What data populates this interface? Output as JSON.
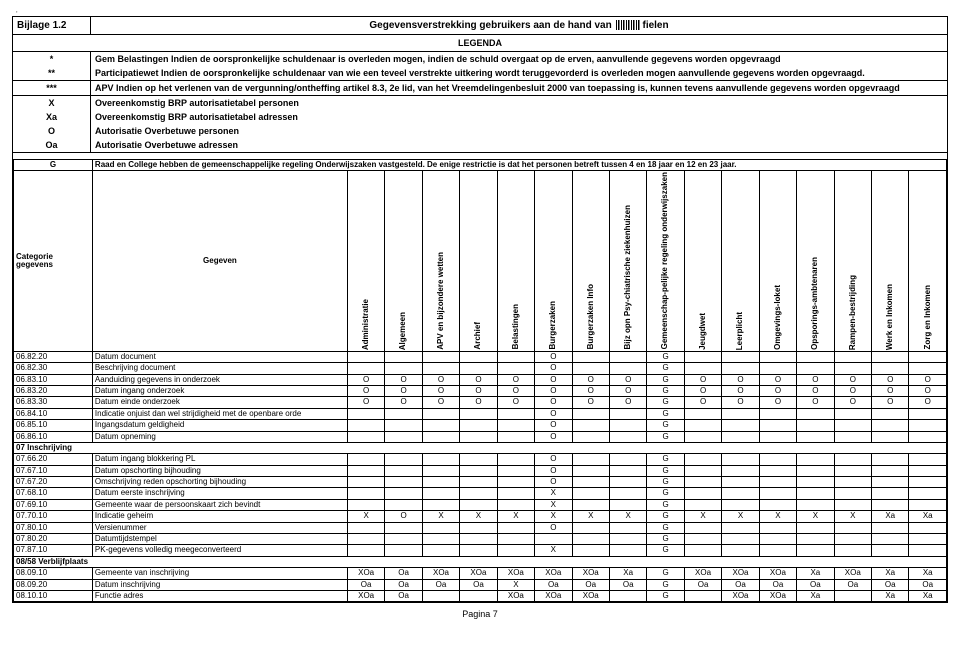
{
  "topbar": ",",
  "bijlage": "Bijlage 1.2",
  "titleLeft": "Gegevensverstrekking gebruikers aan de hand van ",
  "titleRight": "fielen",
  "legenda": "LEGENDA",
  "legendRows": [
    {
      "code": "*",
      "text": "Gem Belastingen Indien de oorspronkelijke schuldenaar is overleden mogen, indien de schuld overgaat op de erven, aanvullende gegevens worden opgevraagd"
    },
    {
      "code": "**",
      "text": "Participatiewet Indien de oorspronkelijke schuldenaar van wie een teveel verstrekte uitkering wordt teruggevorderd is overleden mogen aanvullende gegevens worden opgevraagd."
    }
  ],
  "legendRows2": [
    {
      "code": "***",
      "text": "APV Indien op het verlenen van de vergunning/ontheffing artikel 8.3, 2e lid, van het Vreemdelingenbesluit 2000 van toepassing is, kunnen tevens aanvullende gegevens worden opgevraagd"
    }
  ],
  "legendRows3": [
    {
      "code": "X",
      "text": "Overeenkomstig BRP autorisatietabel personen"
    },
    {
      "code": "Xa",
      "text": "Overeenkomstig BRP autorisatietabel adressen"
    },
    {
      "code": "O",
      "text": "Autorisatie Overbetuwe personen"
    },
    {
      "code": "Oa",
      "text": "Autorisatie Overbetuwe adressen"
    }
  ],
  "gnote": {
    "code": "G",
    "text": "Raad en College hebben de gemeenschappelijke regeling Onderwijszaken vastgesteld. De enige restrictie is dat het personen betreft tussen 4 en 18 jaar en 12 en 23 jaar."
  },
  "catlabel": "Categorie gegevens",
  "gegeven": "Gegeven",
  "columns": [
    "Administratie",
    "Algemeen",
    "APV en bijzondere wetten",
    "Archief",
    "Belastingen",
    "Burgerzaken",
    "Burgerzaken Info",
    "Bijz opn Psy-chiatrische ziekenhuizen",
    "Gemeenschap-pelijke regeling onderwijszaken",
    "Jeugdwet",
    "Leerplicht",
    "Omgevings-loket",
    "Opsporings-ambtenaren",
    "Rampen-bestrijding",
    "Werk en Inkomen",
    "Zorg en Inkomen"
  ],
  "rows": [
    {
      "code": "06.82.20",
      "desc": "Datum document",
      "c": [
        "",
        "",
        "",
        "",
        "",
        "O",
        "",
        "",
        "G",
        "",
        "",
        "",
        "",
        "",
        "",
        ""
      ]
    },
    {
      "code": "06.82.30",
      "desc": "Beschrijving document",
      "c": [
        "",
        "",
        "",
        "",
        "",
        "O",
        "",
        "",
        "G",
        "",
        "",
        "",
        "",
        "",
        "",
        ""
      ]
    },
    {
      "code": "06.83.10",
      "desc": "Aanduiding gegevens in onderzoek",
      "c": [
        "O",
        "O",
        "O",
        "O",
        "O",
        "O",
        "O",
        "O",
        "G",
        "O",
        "O",
        "O",
        "O",
        "O",
        "O",
        "O"
      ]
    },
    {
      "code": "06.83.20",
      "desc": "Datum ingang onderzoek",
      "c": [
        "O",
        "O",
        "O",
        "O",
        "O",
        "O",
        "O",
        "O",
        "G",
        "O",
        "O",
        "O",
        "O",
        "O",
        "O",
        "O"
      ]
    },
    {
      "code": "06.83.30",
      "desc": "Datum einde onderzoek",
      "c": [
        "O",
        "O",
        "O",
        "O",
        "O",
        "O",
        "O",
        "O",
        "G",
        "O",
        "O",
        "O",
        "O",
        "O",
        "O",
        "O"
      ]
    },
    {
      "code": "06.84.10",
      "desc": "Indicatie onjuist dan wel strijdigheid met de openbare orde",
      "c": [
        "",
        "",
        "",
        "",
        "",
        "O",
        "",
        "",
        "G",
        "",
        "",
        "",
        "",
        "",
        "",
        ""
      ]
    },
    {
      "code": "06.85.10",
      "desc": "Ingangsdatum geldigheid",
      "c": [
        "",
        "",
        "",
        "",
        "",
        "O",
        "",
        "",
        "G",
        "",
        "",
        "",
        "",
        "",
        "",
        ""
      ]
    },
    {
      "code": "06.86.10",
      "desc": "Datum opneming",
      "c": [
        "",
        "",
        "",
        "",
        "",
        "O",
        "",
        "",
        "G",
        "",
        "",
        "",
        "",
        "",
        "",
        ""
      ]
    },
    {
      "section": "07 Inschrijving"
    },
    {
      "code": "07.66.20",
      "desc": "Datum ingang blokkering PL",
      "c": [
        "",
        "",
        "",
        "",
        "",
        "O",
        "",
        "",
        "G",
        "",
        "",
        "",
        "",
        "",
        "",
        ""
      ]
    },
    {
      "code": "07.67.10",
      "desc": "Datum opschorting bijhouding",
      "c": [
        "",
        "",
        "",
        "",
        "",
        "O",
        "",
        "",
        "G",
        "",
        "",
        "",
        "",
        "",
        "",
        ""
      ]
    },
    {
      "code": "07.67.20",
      "desc": "Omschrijving reden opschorting bijhouding",
      "c": [
        "",
        "",
        "",
        "",
        "",
        "O",
        "",
        "",
        "G",
        "",
        "",
        "",
        "",
        "",
        "",
        ""
      ]
    },
    {
      "code": "07.68.10",
      "desc": "Datum eerste inschrijving",
      "c": [
        "",
        "",
        "",
        "",
        "",
        "X",
        "",
        "",
        "G",
        "",
        "",
        "",
        "",
        "",
        "",
        ""
      ]
    },
    {
      "code": "07.69.10",
      "desc": "Gemeente waar de persoonskaart zich bevindt",
      "c": [
        "",
        "",
        "",
        "",
        "",
        "X",
        "",
        "",
        "G",
        "",
        "",
        "",
        "",
        "",
        "",
        ""
      ]
    },
    {
      "code": "07.70.10",
      "desc": "Indicatie geheim",
      "c": [
        "X",
        "O",
        "X",
        "X",
        "X",
        "X",
        "X",
        "X",
        "G",
        "X",
        "X",
        "X",
        "X",
        "X",
        "Xa",
        "Xa"
      ]
    },
    {
      "code": "07.80.10",
      "desc": "Versienummer",
      "c": [
        "",
        "",
        "",
        "",
        "",
        "O",
        "",
        "",
        "G",
        "",
        "",
        "",
        "",
        "",
        "",
        ""
      ]
    },
    {
      "code": "07.80.20",
      "desc": "Datumtijdstempel",
      "c": [
        "",
        "",
        "",
        "",
        "",
        "",
        "",
        "",
        "G",
        "",
        "",
        "",
        "",
        "",
        "",
        ""
      ]
    },
    {
      "code": "07.87.10",
      "desc": "PK-gegevens volledig meegeconverteerd",
      "c": [
        "",
        "",
        "",
        "",
        "",
        "X",
        "",
        "",
        "G",
        "",
        "",
        "",
        "",
        "",
        "",
        ""
      ]
    },
    {
      "section": "08/58 Verblijfplaats"
    },
    {
      "code": "08.09.10",
      "desc": "Gemeente van inschrijving",
      "c": [
        "XOa",
        "Oa",
        "XOa",
        "XOa",
        "XOa",
        "XOa",
        "XOa",
        "Xa",
        "G",
        "XOa",
        "XOa",
        "XOa",
        "Xa",
        "XOa",
        "Xa",
        "Xa"
      ]
    },
    {
      "code": "08.09.20",
      "desc": "Datum inschrijving",
      "c": [
        "Oa",
        "Oa",
        "Oa",
        "Oa",
        "X",
        "Oa",
        "Oa",
        "Oa",
        "G",
        "Oa",
        "Oa",
        "Oa",
        "Oa",
        "Oa",
        "Oa",
        "Oa"
      ]
    },
    {
      "code": "08.10.10",
      "desc": "Functie adres",
      "c": [
        "XOa",
        "Oa",
        "",
        "",
        "XOa",
        "XOa",
        "XOa",
        "",
        "G",
        "",
        "XOa",
        "XOa",
        "Xa",
        "",
        "Xa",
        "Xa"
      ]
    }
  ],
  "pageno": "Pagina 7"
}
